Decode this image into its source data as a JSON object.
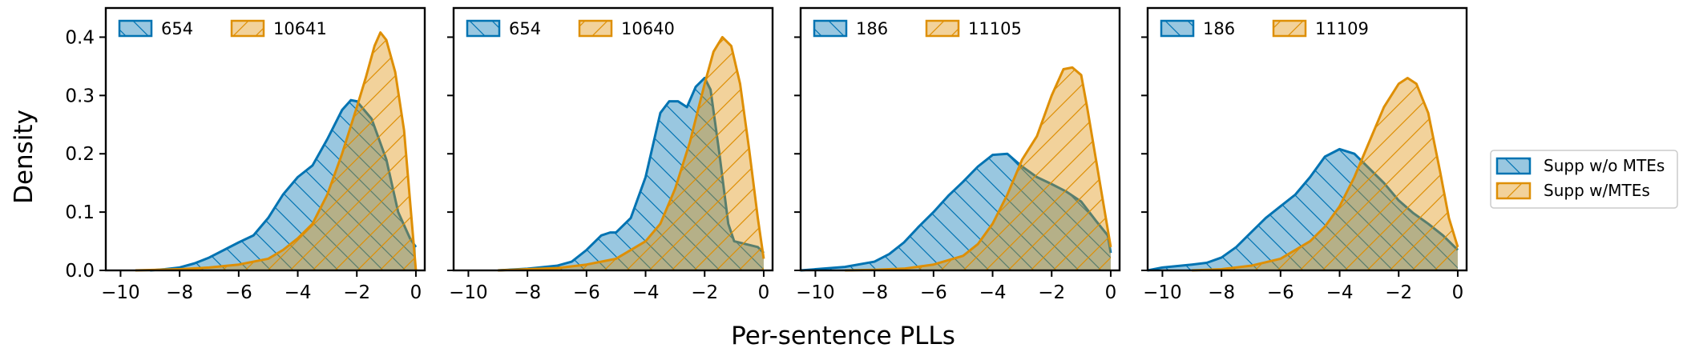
{
  "figure": {
    "xlabel": "Per-sentence PLLs",
    "ylabel": "Density"
  },
  "legend": {
    "items": [
      {
        "label": "Supp w/o MTEs",
        "color": "#0173b2"
      },
      {
        "label": "Supp w/MTEs",
        "color": "#de8f05"
      }
    ],
    "placement": "right, outside"
  },
  "chart_data": [
    {
      "type": "area",
      "xlim": [
        -10.5,
        0.3
      ],
      "ylim": [
        0,
        0.45
      ],
      "xticks": [
        -10,
        -8,
        -6,
        -4,
        -2,
        0
      ],
      "yticks": [
        0.0,
        0.1,
        0.2,
        0.3,
        0.4
      ],
      "series": [
        {
          "count_label": "654",
          "color": "#0173b2",
          "hatch": "backslash",
          "x": [
            -9.0,
            -8.5,
            -8.0,
            -7.5,
            -7.0,
            -6.5,
            -6.0,
            -5.5,
            -5.0,
            -4.5,
            -4.0,
            -3.5,
            -3.0,
            -2.5,
            -2.2,
            -2.0,
            -1.5,
            -1.0,
            -0.6,
            -0.2,
            0.0
          ],
          "y": [
            0.0,
            0.002,
            0.005,
            0.012,
            0.022,
            0.035,
            0.048,
            0.06,
            0.09,
            0.13,
            0.16,
            0.18,
            0.225,
            0.275,
            0.292,
            0.29,
            0.26,
            0.19,
            0.1,
            0.055,
            0.04
          ]
        },
        {
          "count_label": "10641",
          "color": "#de8f05",
          "hatch": "slash",
          "x": [
            -9.5,
            -8.0,
            -7.0,
            -6.0,
            -5.0,
            -4.5,
            -4.0,
            -3.5,
            -3.0,
            -2.5,
            -2.0,
            -1.7,
            -1.4,
            -1.2,
            -1.0,
            -0.7,
            -0.4,
            -0.2,
            0.0
          ],
          "y": [
            0.0,
            0.002,
            0.005,
            0.01,
            0.02,
            0.035,
            0.055,
            0.08,
            0.13,
            0.2,
            0.28,
            0.33,
            0.385,
            0.408,
            0.395,
            0.34,
            0.24,
            0.12,
            0.0
          ]
        }
      ]
    },
    {
      "type": "area",
      "xlim": [
        -10.5,
        0.3
      ],
      "ylim": [
        0,
        0.45
      ],
      "xticks": [
        -10,
        -8,
        -6,
        -4,
        -2,
        0
      ],
      "yticks": [
        0.0,
        0.1,
        0.2,
        0.3,
        0.4
      ],
      "series": [
        {
          "count_label": "654",
          "color": "#0173b2",
          "hatch": "backslash",
          "x": [
            -9.0,
            -8.0,
            -7.0,
            -6.5,
            -6.0,
            -5.5,
            -5.2,
            -5.0,
            -4.5,
            -4.0,
            -3.5,
            -3.2,
            -2.9,
            -2.6,
            -2.3,
            -2.0,
            -1.8,
            -1.5,
            -1.2,
            -1.0,
            -0.6,
            -0.2,
            0.0
          ],
          "y": [
            0.0,
            0.003,
            0.008,
            0.015,
            0.035,
            0.06,
            0.065,
            0.065,
            0.09,
            0.16,
            0.27,
            0.29,
            0.29,
            0.28,
            0.315,
            0.33,
            0.31,
            0.2,
            0.08,
            0.05,
            0.045,
            0.04,
            0.03
          ]
        },
        {
          "count_label": "10640",
          "color": "#de8f05",
          "hatch": "slash",
          "x": [
            -9.0,
            -8.0,
            -7.0,
            -6.0,
            -5.0,
            -4.0,
            -3.5,
            -3.0,
            -2.5,
            -2.0,
            -1.7,
            -1.4,
            -1.1,
            -0.8,
            -0.5,
            -0.2,
            0.0
          ],
          "y": [
            0.0,
            0.002,
            0.004,
            0.01,
            0.02,
            0.05,
            0.08,
            0.14,
            0.22,
            0.32,
            0.375,
            0.4,
            0.385,
            0.32,
            0.21,
            0.09,
            0.02
          ]
        }
      ]
    },
    {
      "type": "area",
      "xlim": [
        -10.5,
        0.3
      ],
      "ylim": [
        0,
        0.45
      ],
      "xticks": [
        -10,
        -8,
        -6,
        -4,
        -2,
        0
      ],
      "yticks": [
        0.0,
        0.1,
        0.2,
        0.3,
        0.4
      ],
      "series": [
        {
          "count_label": "186",
          "color": "#0173b2",
          "hatch": "backslash",
          "x": [
            -10.5,
            -10.0,
            -9.0,
            -8.0,
            -7.5,
            -7.0,
            -6.5,
            -6.0,
            -5.5,
            -5.0,
            -4.5,
            -4.0,
            -3.5,
            -3.0,
            -2.5,
            -2.0,
            -1.5,
            -1.0,
            -0.5,
            -0.1,
            0.0
          ],
          "y": [
            0.0,
            0.002,
            0.006,
            0.015,
            0.028,
            0.048,
            0.075,
            0.1,
            0.128,
            0.152,
            0.178,
            0.198,
            0.2,
            0.178,
            0.16,
            0.148,
            0.135,
            0.118,
            0.085,
            0.06,
            0.03
          ]
        },
        {
          "count_label": "11105",
          "color": "#de8f05",
          "hatch": "slash",
          "x": [
            -9.0,
            -8.0,
            -7.0,
            -6.0,
            -5.0,
            -4.5,
            -4.0,
            -3.5,
            -3.0,
            -2.5,
            -2.0,
            -1.6,
            -1.3,
            -1.0,
            -0.8,
            -0.5,
            -0.2,
            0.0
          ],
          "y": [
            0.0,
            0.001,
            0.003,
            0.01,
            0.025,
            0.045,
            0.08,
            0.13,
            0.19,
            0.23,
            0.3,
            0.345,
            0.348,
            0.335,
            0.28,
            0.19,
            0.1,
            0.04
          ]
        }
      ]
    },
    {
      "type": "area",
      "xlim": [
        -10.5,
        0.3
      ],
      "ylim": [
        0,
        0.45
      ],
      "xticks": [
        -10,
        -8,
        -6,
        -4,
        -2,
        0
      ],
      "yticks": [
        0.0,
        0.1,
        0.2,
        0.3,
        0.4
      ],
      "series": [
        {
          "count_label": "186",
          "color": "#0173b2",
          "hatch": "backslash",
          "x": [
            -10.5,
            -10.0,
            -9.0,
            -8.5,
            -8.0,
            -7.5,
            -7.0,
            -6.5,
            -6.0,
            -5.5,
            -5.0,
            -4.5,
            -4.0,
            -3.5,
            -3.0,
            -2.5,
            -2.0,
            -1.5,
            -1.0,
            -0.5,
            -0.1,
            0.0
          ],
          "y": [
            0.0,
            0.005,
            0.01,
            0.013,
            0.022,
            0.04,
            0.065,
            0.09,
            0.11,
            0.13,
            0.16,
            0.195,
            0.208,
            0.2,
            0.175,
            0.15,
            0.12,
            0.098,
            0.08,
            0.06,
            0.04,
            0.035
          ]
        },
        {
          "count_label": "11109",
          "color": "#de8f05",
          "hatch": "slash",
          "x": [
            -9.0,
            -8.0,
            -7.0,
            -6.0,
            -5.0,
            -4.5,
            -4.0,
            -3.5,
            -3.0,
            -2.5,
            -2.0,
            -1.7,
            -1.4,
            -1.0,
            -0.6,
            -0.3,
            0.0
          ],
          "y": [
            0.0,
            0.002,
            0.008,
            0.02,
            0.05,
            0.075,
            0.11,
            0.16,
            0.22,
            0.28,
            0.32,
            0.33,
            0.32,
            0.27,
            0.17,
            0.09,
            0.04
          ]
        }
      ]
    }
  ]
}
